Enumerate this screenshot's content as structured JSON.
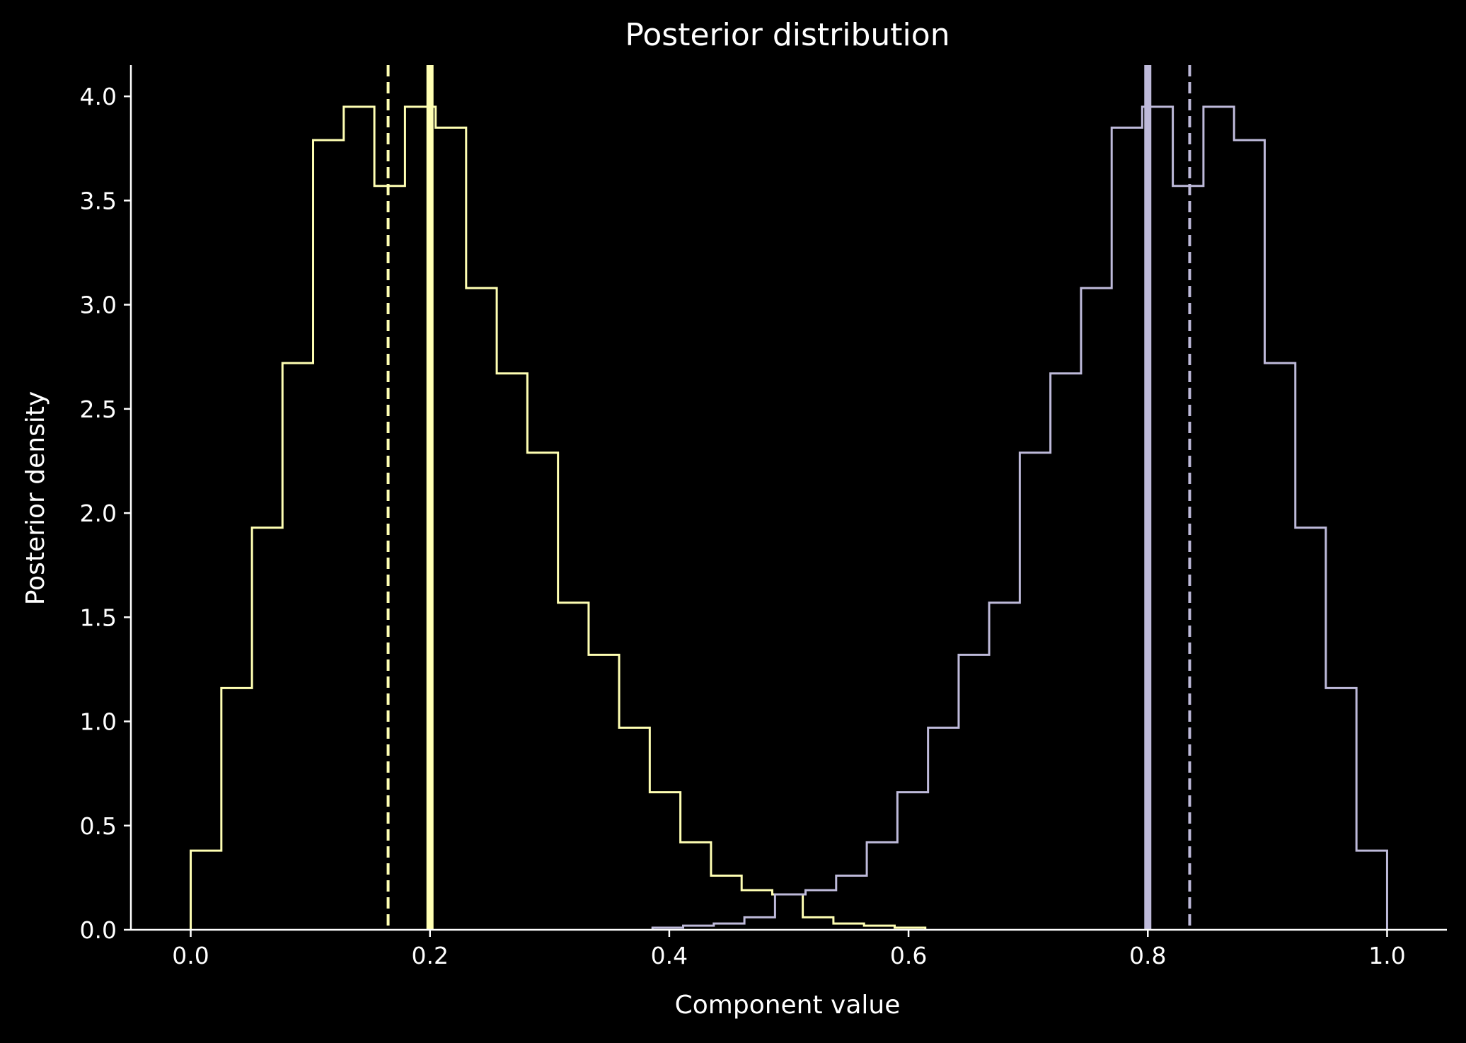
{
  "chart_data": {
    "type": "histogram",
    "title": "Posterior distribution",
    "xlabel": "Component value",
    "ylabel": "Posterior density",
    "xlim": [
      -0.05,
      1.05
    ],
    "ylim": [
      0,
      4.15
    ],
    "grid": false,
    "legend": "none",
    "background": "#000000",
    "axis_color": "#ffffff",
    "x_ticks": [
      0.0,
      0.2,
      0.4,
      0.6,
      0.8,
      1.0
    ],
    "x_tick_labels": [
      "0.0",
      "0.2",
      "0.4",
      "0.6",
      "0.8",
      "1.0"
    ],
    "y_ticks": [
      0.0,
      0.5,
      1.0,
      1.5,
      2.0,
      2.5,
      3.0,
      3.5,
      4.0
    ],
    "y_tick_labels": [
      "0.0",
      "0.5",
      "1.0",
      "1.5",
      "2.0",
      "2.5",
      "3.0",
      "3.5",
      "4.0"
    ],
    "series": [
      {
        "color": "#ffffb3",
        "bin_edges": [
          0.0,
          0.0256,
          0.0512,
          0.0767,
          0.1023,
          0.1279,
          0.1535,
          0.1791,
          0.2047,
          0.2302,
          0.2558,
          0.2814,
          0.307,
          0.3326,
          0.3581,
          0.3837,
          0.4093,
          0.4349,
          0.4605,
          0.4861,
          0.5116,
          0.5372,
          0.5628,
          0.5884,
          0.614
        ],
        "densities": [
          0.38,
          1.16,
          1.93,
          2.72,
          3.79,
          3.95,
          3.57,
          3.95,
          3.85,
          3.08,
          2.67,
          2.29,
          1.57,
          1.32,
          0.97,
          0.66,
          0.42,
          0.26,
          0.19,
          0.17,
          0.06,
          0.03,
          0.02,
          0.01
        ]
      },
      {
        "color": "#bebada",
        "bin_edges": [
          0.386,
          0.4116,
          0.4372,
          0.4628,
          0.4884,
          0.5139,
          0.5395,
          0.5651,
          0.5907,
          0.6163,
          0.6419,
          0.6674,
          0.693,
          0.7186,
          0.7442,
          0.7698,
          0.7953,
          0.8209,
          0.8465,
          0.8721,
          0.8977,
          0.9233,
          0.9488,
          0.9744,
          1.0
        ],
        "densities": [
          0.01,
          0.02,
          0.03,
          0.06,
          0.17,
          0.19,
          0.26,
          0.42,
          0.66,
          0.97,
          1.32,
          1.57,
          2.29,
          2.67,
          3.08,
          3.85,
          3.95,
          3.57,
          3.95,
          3.79,
          2.72,
          1.93,
          1.16,
          0.38
        ]
      }
    ],
    "reference_lines": [
      {
        "x": 0.2,
        "style": "solid",
        "color": "#ffffb3"
      },
      {
        "x": 0.165,
        "style": "dashed",
        "color": "#ffffb3"
      },
      {
        "x": 0.8,
        "style": "solid",
        "color": "#bebada"
      },
      {
        "x": 0.835,
        "style": "dashed",
        "color": "#bebada"
      }
    ]
  }
}
